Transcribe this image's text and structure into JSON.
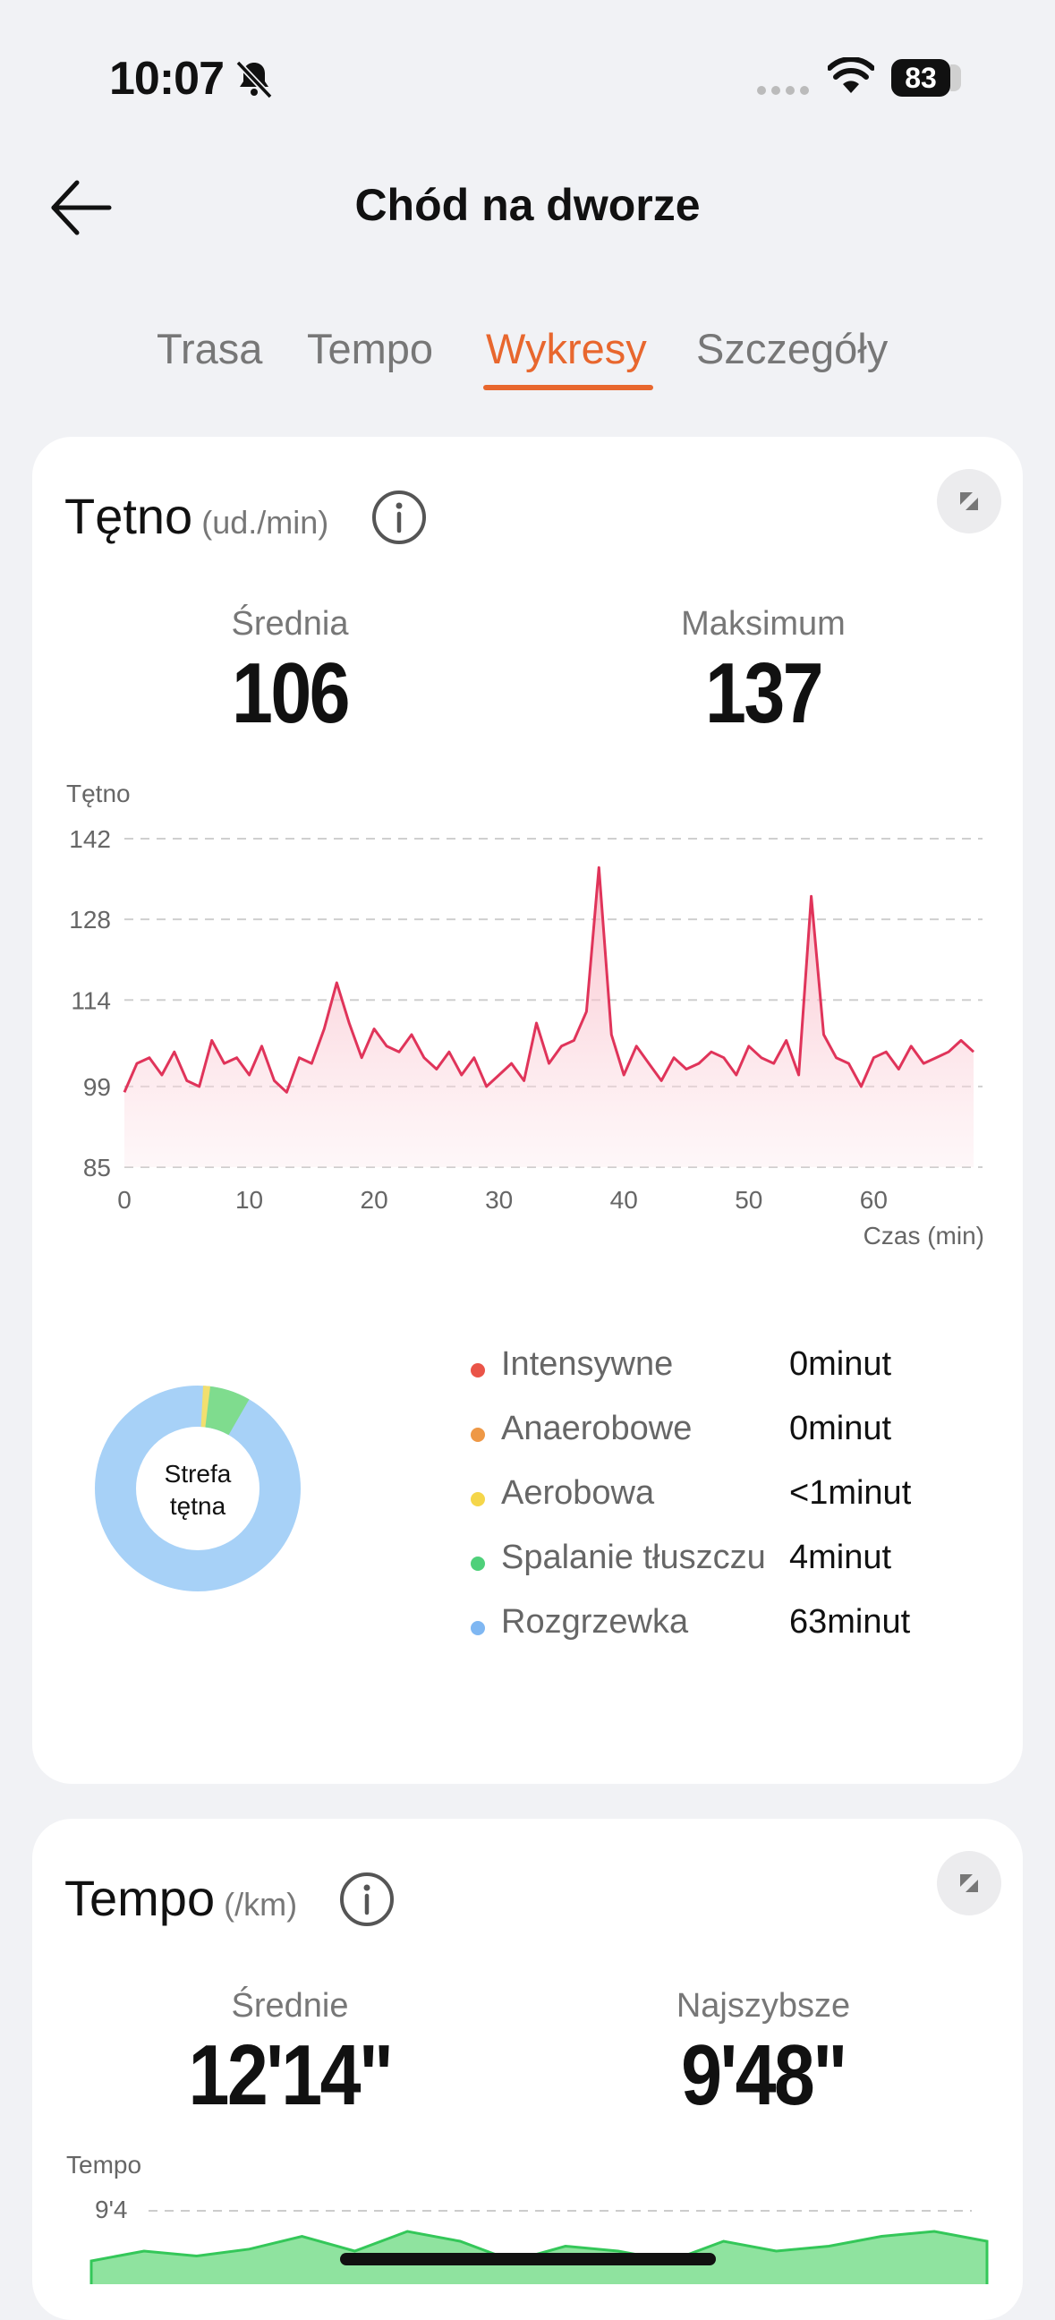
{
  "status_bar": {
    "time": "10:07",
    "battery": "83"
  },
  "header": {
    "title": "Chód na dworze"
  },
  "tabs": [
    {
      "label": "Trasa"
    },
    {
      "label": "Tempo"
    },
    {
      "label": "Wykresy"
    },
    {
      "label": "Szczegóły"
    }
  ],
  "active_tab": "Wykresy",
  "colors": {
    "accent": "#e8672e",
    "heart_line": "#e0345a",
    "pace_fill": "#34c759"
  },
  "heart_rate": {
    "title": "Tętno",
    "unit": "(ud./min)",
    "avg_label": "Średnia",
    "avg_value": "106",
    "max_label": "Maksimum",
    "max_value": "137",
    "zone_center_line1": "Strefa",
    "zone_center_line2": "tętna",
    "zones": [
      {
        "name": "Intensywne",
        "value": "0minut",
        "color": "#ea5448"
      },
      {
        "name": "Anaerobowe",
        "value": "0minut",
        "color": "#ee9846"
      },
      {
        "name": "Aerobowa",
        "value": "<1minut",
        "color": "#f5d64a"
      },
      {
        "name": "Spalanie tłuszczu",
        "value": "4minut",
        "color": "#4fd07a"
      },
      {
        "name": "Rozgrzewka",
        "value": "63minut",
        "color": "#7fb7f2"
      }
    ]
  },
  "pace": {
    "title": "Tempo",
    "unit": "(/km)",
    "avg_label": "Średnie",
    "avg_value": "12'14\"",
    "best_label": "Najszybsze",
    "best_value": "9'48\"",
    "chart_ylabel": "Tempo",
    "chart_top_tick": "9'4"
  },
  "chart_data": [
    {
      "type": "area",
      "title": "",
      "ylabel": "Tętno",
      "xlabel": "Czas (min)",
      "xlim": [
        0,
        68
      ],
      "ylim": [
        85,
        142
      ],
      "yticks": [
        142,
        128,
        114,
        99,
        85
      ],
      "xticks": [
        0,
        10,
        20,
        30,
        40,
        50,
        60
      ],
      "grid": true,
      "series": [
        {
          "x": [
            0,
            1,
            2,
            3,
            4,
            5,
            6,
            7,
            8,
            9,
            10,
            11,
            12,
            13,
            14,
            15,
            16,
            17,
            18,
            19,
            20,
            21,
            22,
            23,
            24,
            25,
            26,
            27,
            28,
            29,
            30,
            31,
            32,
            33,
            34,
            35,
            36,
            37,
            38,
            39,
            40,
            41,
            42,
            43,
            44,
            45,
            46,
            47,
            48,
            49,
            50,
            51,
            52,
            53,
            54,
            55,
            56,
            57,
            58,
            59,
            60,
            61,
            62,
            63,
            64,
            65,
            66,
            67,
            68
          ],
          "y": [
            98,
            103,
            104,
            101,
            105,
            100,
            99,
            107,
            103,
            104,
            101,
            106,
            100,
            98,
            104,
            103,
            109,
            117,
            110,
            104,
            109,
            106,
            105,
            108,
            104,
            102,
            105,
            101,
            104,
            99,
            101,
            103,
            100,
            110,
            103,
            106,
            107,
            112,
            137,
            108,
            101,
            106,
            103,
            100,
            104,
            102,
            103,
            105,
            104,
            101,
            106,
            104,
            103,
            107,
            101,
            132,
            108,
            104,
            103,
            99,
            104,
            105,
            102,
            106,
            103,
            104,
            105,
            107,
            105
          ]
        }
      ]
    },
    {
      "type": "area",
      "title": "",
      "ylabel": "Tempo",
      "yticks": [
        "9'4"
      ],
      "series": [
        {
          "x": [
            0,
            4,
            8,
            12,
            16,
            20,
            24,
            28,
            32,
            36,
            40,
            44,
            48,
            52,
            56,
            60,
            64,
            68
          ],
          "y": [
            0.6,
            0.7,
            0.65,
            0.72,
            0.85,
            0.7,
            0.9,
            0.8,
            0.6,
            0.75,
            0.7,
            0.6,
            0.8,
            0.7,
            0.75,
            0.85,
            0.9,
            0.8
          ]
        }
      ]
    }
  ]
}
